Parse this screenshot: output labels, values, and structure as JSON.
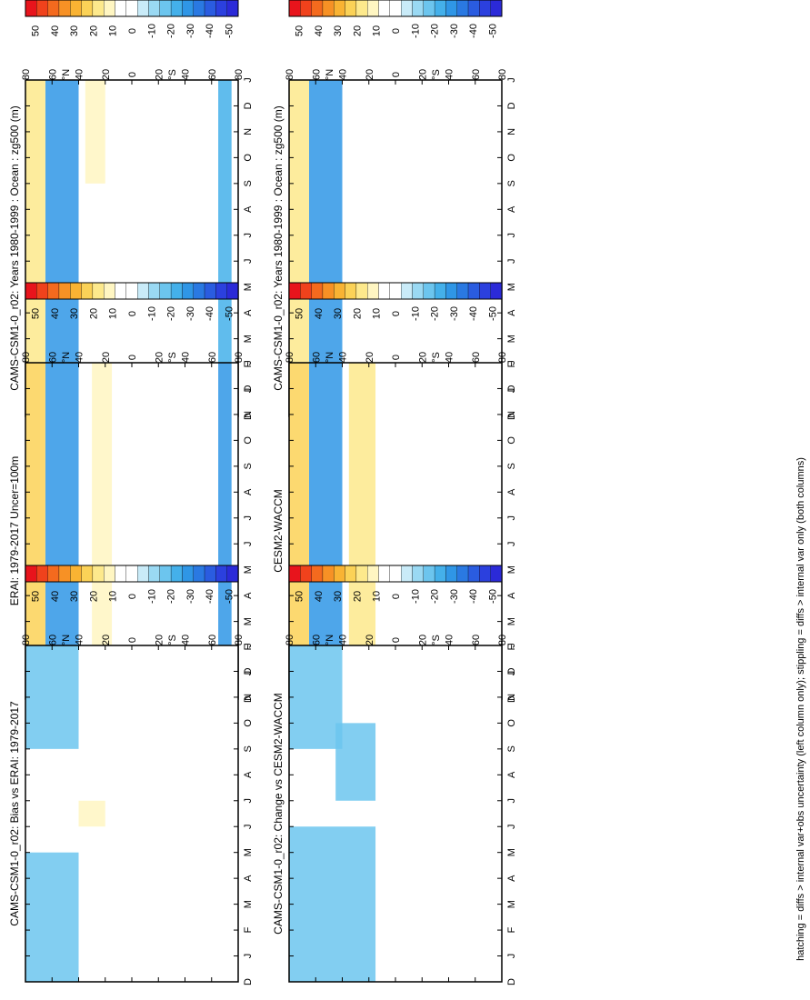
{
  "caption": "hatching = diffs > internal var+obs uncertainty (left column only); stippling = diffs > internal var only (both columns)",
  "colorbar": {
    "labels": [
      "50",
      "40",
      "30",
      "20",
      "10",
      "0",
      "-10",
      "-20",
      "-30",
      "-40",
      "-50"
    ],
    "colors": [
      "#e8141c",
      "#f0421c",
      "#f46a1e",
      "#f79125",
      "#f9b333",
      "#fbd257",
      "#fde98c",
      "#fff6c2",
      "#ffffff",
      "#ffffff",
      "#c9ebf8",
      "#9ad9f3",
      "#6cc5ee",
      "#44b0ea",
      "#2f96e6",
      "#2a79e2",
      "#2a5ce0",
      "#2b40de",
      "#2b2ad8"
    ]
  },
  "panels": [
    {
      "id": "left-top",
      "title": "CAMS-CSM1-0_r02: Years 1980-1999 : Ocean : zg500 (m)"
    },
    {
      "id": "left-mid",
      "title": "ERAI: 1979-2017 Uncer=100m"
    },
    {
      "id": "left-bot",
      "title": "CAMS-CSM1-0_r02: Bias vs ERAI: 1979-2017"
    },
    {
      "id": "right-top",
      "title": "CAMS-CSM1-0_r02: Years 1980-1999 : Ocean : zg500 (m)"
    },
    {
      "id": "right-mid",
      "title": "CESM2-WACCM"
    },
    {
      "id": "right-bot",
      "title": "CAMS-CSM1-0_r02: Change vs CESM2-WACCM"
    }
  ],
  "chart_data": {
    "type": "heatmap",
    "x_tick_labels": [
      "D",
      "J",
      "F",
      "M",
      "A",
      "M",
      "J",
      "J",
      "A",
      "S",
      "O",
      "N",
      "D",
      "J"
    ],
    "y_tick_labels": [
      "80",
      "60",
      "40",
      "20",
      "0",
      "20",
      "40",
      "60",
      "80"
    ],
    "y_hemisphere_labels": {
      "north": "°N",
      "south": "°S"
    },
    "x_range": [
      "D",
      "J"
    ],
    "y_range": [
      80,
      -80
    ],
    "color_scale": {
      "min": -50,
      "max": 50,
      "step": 5
    },
    "grid": false,
    "features": [
      {
        "panel": "left-top",
        "lat_min": 40,
        "lat_max": 65,
        "month_start": 0,
        "month_end": 13,
        "value": -30
      },
      {
        "panel": "left-top",
        "lat_min": 65,
        "lat_max": 80,
        "month_start": 0,
        "month_end": 13,
        "value": 15
      },
      {
        "panel": "left-top",
        "lat_min": 20,
        "lat_max": 35,
        "month_start": 9,
        "month_end": 13,
        "value": 10
      },
      {
        "panel": "left-top",
        "lat_min": -75,
        "lat_max": -65,
        "month_start": 0,
        "month_end": 13,
        "value": -20
      },
      {
        "panel": "left-mid",
        "lat_min": 40,
        "lat_max": 65,
        "month_start": 0,
        "month_end": 13,
        "value": -30
      },
      {
        "panel": "left-mid",
        "lat_min": 65,
        "lat_max": 80,
        "month_start": 0,
        "month_end": 13,
        "value": 20
      },
      {
        "panel": "left-mid",
        "lat_min": 15,
        "lat_max": 30,
        "month_start": 0,
        "month_end": 13,
        "value": 10
      },
      {
        "panel": "left-mid",
        "lat_min": -75,
        "lat_max": -65,
        "month_start": 0,
        "month_end": 13,
        "value": -25
      },
      {
        "panel": "left-bot",
        "lat_min": 40,
        "lat_max": 80,
        "month_start": 0,
        "month_end": 5,
        "value": -15
      },
      {
        "panel": "left-bot",
        "lat_min": 40,
        "lat_max": 80,
        "month_start": 9,
        "month_end": 13,
        "value": -15
      },
      {
        "panel": "left-bot",
        "lat_min": 20,
        "lat_max": 40,
        "month_start": 6,
        "month_end": 7,
        "value": 10
      },
      {
        "panel": "right-top",
        "lat_min": 40,
        "lat_max": 65,
        "month_start": 0,
        "month_end": 13,
        "value": -30
      },
      {
        "panel": "right-top",
        "lat_min": 65,
        "lat_max": 80,
        "month_start": 0,
        "month_end": 13,
        "value": 15
      },
      {
        "panel": "right-mid",
        "lat_min": 40,
        "lat_max": 65,
        "month_start": 0,
        "month_end": 13,
        "value": -25
      },
      {
        "panel": "right-mid",
        "lat_min": 65,
        "lat_max": 80,
        "month_start": 0,
        "month_end": 13,
        "value": 25
      },
      {
        "panel": "right-mid",
        "lat_min": 15,
        "lat_max": 35,
        "month_start": 0,
        "month_end": 13,
        "value": 15
      },
      {
        "panel": "right-bot",
        "lat_min": 15,
        "lat_max": 80,
        "month_start": 0,
        "month_end": 6,
        "value": -15
      },
      {
        "panel": "right-bot",
        "lat_min": 15,
        "lat_max": 45,
        "month_start": 7,
        "month_end": 10,
        "value": -15
      },
      {
        "panel": "right-bot",
        "lat_min": 40,
        "lat_max": 80,
        "month_start": 9,
        "month_end": 13,
        "value": -15
      }
    ]
  }
}
